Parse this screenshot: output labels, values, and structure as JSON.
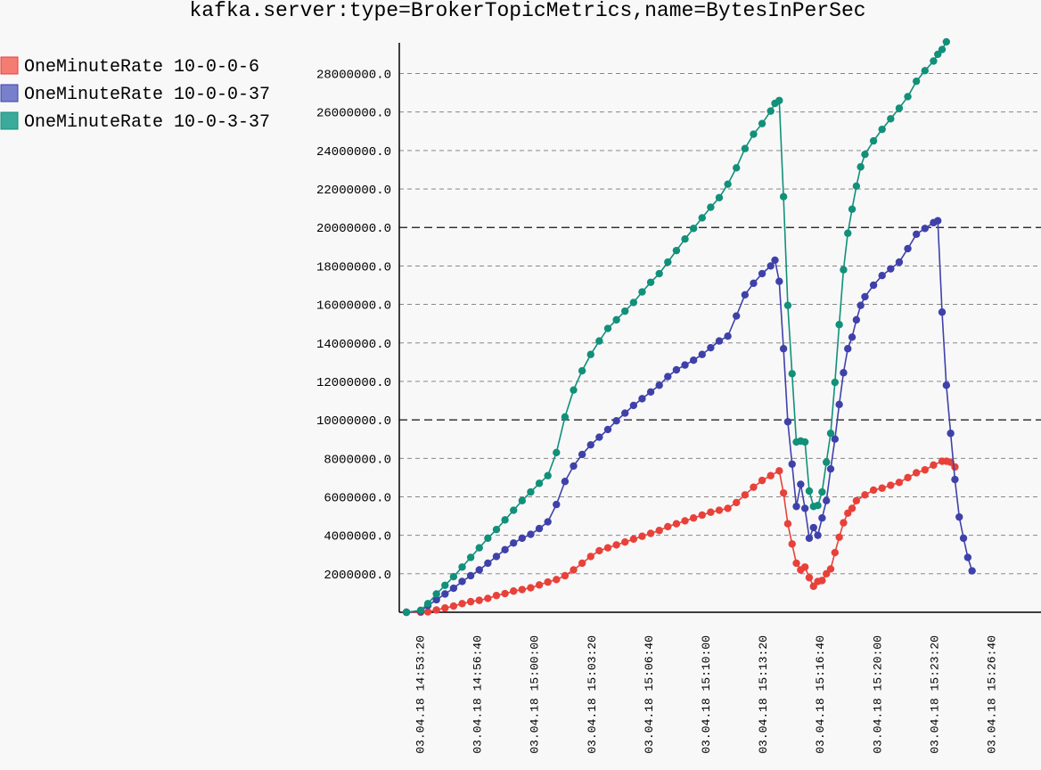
{
  "chart_data": {
    "type": "line",
    "title": "kafka.server:type=BrokerTopicMetrics,name=BytesInPerSec",
    "xlabel": "",
    "ylabel": "",
    "ylim": [
      0,
      29600000
    ],
    "y_ticks": [
      2000000,
      4000000,
      6000000,
      8000000,
      10000000,
      12000000,
      14000000,
      16000000,
      18000000,
      20000000,
      22000000,
      24000000,
      26000000,
      28000000
    ],
    "y_tick_labels": [
      "2000000.0",
      "4000000.0",
      "6000000.0",
      "8000000.0",
      "10000000.0",
      "12000000.0",
      "14000000.0",
      "16000000.0",
      "18000000.0",
      "20000000.0",
      "22000000.0",
      "24000000.0",
      "26000000.0",
      "28000000.0"
    ],
    "major_gridlines": [
      10000000,
      20000000
    ],
    "x_range": [
      "03.04.18 14:52:10",
      "03.04.18 15:29:30"
    ],
    "x_ticks": [
      "03.04.18 14:53:20",
      "03.04.18 14:56:40",
      "03.04.18 15:00:00",
      "03.04.18 15:03:20",
      "03.04.18 15:06:40",
      "03.04.18 15:10:00",
      "03.04.18 15:13:20",
      "03.04.18 15:16:40",
      "03.04.18 15:20:00",
      "03.04.18 15:23:20",
      "03.04.18 15:26:40"
    ],
    "legend_position": "top-left",
    "series": [
      {
        "name": "OneMinuteRate 10-0-0-6",
        "color": "#e8413a",
        "fill": "#f47c73",
        "points": [
          [
            "03.04.18 14:52:35",
            0
          ],
          [
            "03.04.18 14:53:25",
            0
          ],
          [
            "03.04.18 14:53:50",
            20000
          ],
          [
            "03.04.18 14:54:20",
            120000
          ],
          [
            "03.04.18 14:54:50",
            220000
          ],
          [
            "03.04.18 14:55:20",
            320000
          ],
          [
            "03.04.18 14:55:50",
            450000
          ],
          [
            "03.04.18 14:56:20",
            550000
          ],
          [
            "03.04.18 14:56:50",
            620000
          ],
          [
            "03.04.18 14:57:20",
            720000
          ],
          [
            "03.04.18 14:57:50",
            870000
          ],
          [
            "03.04.18 14:58:20",
            970000
          ],
          [
            "03.04.18 14:58:50",
            1100000
          ],
          [
            "03.04.18 14:59:20",
            1180000
          ],
          [
            "03.04.18 14:59:50",
            1270000
          ],
          [
            "03.04.18 15:00:20",
            1420000
          ],
          [
            "03.04.18 15:00:50",
            1570000
          ],
          [
            "03.04.18 15:01:20",
            1700000
          ],
          [
            "03.04.18 15:01:50",
            1900000
          ],
          [
            "03.04.18 15:02:20",
            2200000
          ],
          [
            "03.04.18 15:02:50",
            2550000
          ],
          [
            "03.04.18 15:03:20",
            2900000
          ],
          [
            "03.04.18 15:03:50",
            3200000
          ],
          [
            "03.04.18 15:04:20",
            3350000
          ],
          [
            "03.04.18 15:04:50",
            3500000
          ],
          [
            "03.04.18 15:05:20",
            3650000
          ],
          [
            "03.04.18 15:05:50",
            3800000
          ],
          [
            "03.04.18 15:06:20",
            3950000
          ],
          [
            "03.04.18 15:06:50",
            4100000
          ],
          [
            "03.04.18 15:07:20",
            4250000
          ],
          [
            "03.04.18 15:07:50",
            4450000
          ],
          [
            "03.04.18 15:08:20",
            4600000
          ],
          [
            "03.04.18 15:08:50",
            4750000
          ],
          [
            "03.04.18 15:09:20",
            4900000
          ],
          [
            "03.04.18 15:09:50",
            5050000
          ],
          [
            "03.04.18 15:10:20",
            5200000
          ],
          [
            "03.04.18 15:10:50",
            5300000
          ],
          [
            "03.04.18 15:11:20",
            5400000
          ],
          [
            "03.04.18 15:11:50",
            5700000
          ],
          [
            "03.04.18 15:12:20",
            6100000
          ],
          [
            "03.04.18 15:12:50",
            6500000
          ],
          [
            "03.04.18 15:13:20",
            6850000
          ],
          [
            "03.04.18 15:13:50",
            7100000
          ],
          [
            "03.04.18 15:14:20",
            7350000
          ],
          [
            "03.04.18 15:14:35",
            6200000
          ],
          [
            "03.04.18 15:14:50",
            4600000
          ],
          [
            "03.04.18 15:15:05",
            3550000
          ],
          [
            "03.04.18 15:15:20",
            2550000
          ],
          [
            "03.04.18 15:15:35",
            2200000
          ],
          [
            "03.04.18 15:15:50",
            2350000
          ],
          [
            "03.04.18 15:16:05",
            1800000
          ],
          [
            "03.04.18 15:16:20",
            1350000
          ],
          [
            "03.04.18 15:16:35",
            1600000
          ],
          [
            "03.04.18 15:16:50",
            1650000
          ],
          [
            "03.04.18 15:17:05",
            2000000
          ],
          [
            "03.04.18 15:17:20",
            2250000
          ],
          [
            "03.04.18 15:17:35",
            3100000
          ],
          [
            "03.04.18 15:17:50",
            3900000
          ],
          [
            "03.04.18 15:18:05",
            4650000
          ],
          [
            "03.04.18 15:18:20",
            5150000
          ],
          [
            "03.04.18 15:18:35",
            5400000
          ],
          [
            "03.04.18 15:18:50",
            5800000
          ],
          [
            "03.04.18 15:19:20",
            6100000
          ],
          [
            "03.04.18 15:19:50",
            6350000
          ],
          [
            "03.04.18 15:20:20",
            6450000
          ],
          [
            "03.04.18 15:20:50",
            6600000
          ],
          [
            "03.04.18 15:21:20",
            6750000
          ],
          [
            "03.04.18 15:21:50",
            7000000
          ],
          [
            "03.04.18 15:22:20",
            7250000
          ],
          [
            "03.04.18 15:22:50",
            7400000
          ],
          [
            "03.04.18 15:23:20",
            7650000
          ],
          [
            "03.04.18 15:23:50",
            7850000
          ],
          [
            "03.04.18 15:24:05",
            7850000
          ],
          [
            "03.04.18 15:24:20",
            7800000
          ],
          [
            "03.04.18 15:24:35",
            7550000
          ]
        ]
      },
      {
        "name": "OneMinuteRate 10-0-0-37",
        "color": "#3f41aa",
        "fill": "#7880cc",
        "points": [
          [
            "03.04.18 14:52:35",
            0
          ],
          [
            "03.04.18 14:53:25",
            50000
          ],
          [
            "03.04.18 14:53:50",
            350000
          ],
          [
            "03.04.18 14:54:20",
            650000
          ],
          [
            "03.04.18 14:54:50",
            950000
          ],
          [
            "03.04.18 14:55:20",
            1250000
          ],
          [
            "03.04.18 14:55:50",
            1600000
          ],
          [
            "03.04.18 14:56:20",
            1900000
          ],
          [
            "03.04.18 14:56:50",
            2200000
          ],
          [
            "03.04.18 14:57:20",
            2550000
          ],
          [
            "03.04.18 14:57:50",
            2900000
          ],
          [
            "03.04.18 14:58:20",
            3250000
          ],
          [
            "03.04.18 14:58:50",
            3600000
          ],
          [
            "03.04.18 14:59:20",
            3850000
          ],
          [
            "03.04.18 14:59:50",
            4050000
          ],
          [
            "03.04.18 15:00:20",
            4350000
          ],
          [
            "03.04.18 15:00:50",
            4700000
          ],
          [
            "03.04.18 15:01:20",
            5600000
          ],
          [
            "03.04.18 15:01:50",
            6800000
          ],
          [
            "03.04.18 15:02:20",
            7600000
          ],
          [
            "03.04.18 15:02:50",
            8200000
          ],
          [
            "03.04.18 15:03:20",
            8700000
          ],
          [
            "03.04.18 15:03:50",
            9100000
          ],
          [
            "03.04.18 15:04:20",
            9500000
          ],
          [
            "03.04.18 15:04:50",
            9950000
          ],
          [
            "03.04.18 15:05:20",
            10350000
          ],
          [
            "03.04.18 15:05:50",
            10750000
          ],
          [
            "03.04.18 15:06:20",
            11100000
          ],
          [
            "03.04.18 15:06:50",
            11450000
          ],
          [
            "03.04.18 15:07:20",
            11800000
          ],
          [
            "03.04.18 15:07:50",
            12250000
          ],
          [
            "03.04.18 15:08:20",
            12600000
          ],
          [
            "03.04.18 15:08:50",
            12850000
          ],
          [
            "03.04.18 15:09:20",
            13100000
          ],
          [
            "03.04.18 15:09:50",
            13400000
          ],
          [
            "03.04.18 15:10:20",
            13750000
          ],
          [
            "03.04.18 15:10:50",
            14100000
          ],
          [
            "03.04.18 15:11:20",
            14350000
          ],
          [
            "03.04.18 15:11:50",
            15400000
          ],
          [
            "03.04.18 15:12:20",
            16500000
          ],
          [
            "03.04.18 15:12:50",
            17100000
          ],
          [
            "03.04.18 15:13:20",
            17600000
          ],
          [
            "03.04.18 15:13:50",
            18000000
          ],
          [
            "03.04.18 15:14:05",
            18300000
          ],
          [
            "03.04.18 15:14:20",
            17200000
          ],
          [
            "03.04.18 15:14:35",
            13700000
          ],
          [
            "03.04.18 15:14:50",
            9900000
          ],
          [
            "03.04.18 15:15:05",
            7700000
          ],
          [
            "03.04.18 15:15:20",
            5500000
          ],
          [
            "03.04.18 15:15:35",
            6650000
          ],
          [
            "03.04.18 15:15:50",
            5400000
          ],
          [
            "03.04.18 15:16:05",
            3850000
          ],
          [
            "03.04.18 15:16:20",
            4400000
          ],
          [
            "03.04.18 15:16:35",
            4000000
          ],
          [
            "03.04.18 15:16:50",
            4900000
          ],
          [
            "03.04.18 15:17:05",
            5800000
          ],
          [
            "03.04.18 15:17:20",
            7450000
          ],
          [
            "03.04.18 15:17:35",
            9000000
          ],
          [
            "03.04.18 15:17:50",
            10800000
          ],
          [
            "03.04.18 15:18:05",
            12450000
          ],
          [
            "03.04.18 15:18:20",
            13700000
          ],
          [
            "03.04.18 15:18:35",
            14300000
          ],
          [
            "03.04.18 15:18:50",
            15200000
          ],
          [
            "03.04.18 15:19:05",
            15950000
          ],
          [
            "03.04.18 15:19:20",
            16400000
          ],
          [
            "03.04.18 15:19:50",
            17000000
          ],
          [
            "03.04.18 15:20:20",
            17500000
          ],
          [
            "03.04.18 15:20:50",
            17850000
          ],
          [
            "03.04.18 15:21:20",
            18200000
          ],
          [
            "03.04.18 15:21:50",
            18900000
          ],
          [
            "03.04.18 15:22:20",
            19650000
          ],
          [
            "03.04.18 15:22:50",
            19950000
          ],
          [
            "03.04.18 15:23:20",
            20250000
          ],
          [
            "03.04.18 15:23:35",
            20350000
          ],
          [
            "03.04.18 15:23:50",
            15600000
          ],
          [
            "03.04.18 15:24:05",
            11800000
          ],
          [
            "03.04.18 15:24:20",
            9300000
          ],
          [
            "03.04.18 15:24:35",
            6900000
          ],
          [
            "03.04.18 15:24:50",
            4950000
          ],
          [
            "03.04.18 15:25:05",
            3850000
          ],
          [
            "03.04.18 15:25:20",
            2850000
          ],
          [
            "03.04.18 15:25:35",
            2150000
          ]
        ]
      },
      {
        "name": "OneMinuteRate 10-0-3-37",
        "color": "#11907a",
        "fill": "#3aaa9a",
        "points": [
          [
            "03.04.18 14:52:35",
            0
          ],
          [
            "03.04.18 14:53:25",
            100000
          ],
          [
            "03.04.18 14:53:50",
            450000
          ],
          [
            "03.04.18 14:54:20",
            950000
          ],
          [
            "03.04.18 14:54:50",
            1400000
          ],
          [
            "03.04.18 14:55:20",
            1850000
          ],
          [
            "03.04.18 14:55:50",
            2350000
          ],
          [
            "03.04.18 14:56:20",
            2850000
          ],
          [
            "03.04.18 14:56:50",
            3350000
          ],
          [
            "03.04.18 14:57:20",
            3850000
          ],
          [
            "03.04.18 14:57:50",
            4300000
          ],
          [
            "03.04.18 14:58:20",
            4800000
          ],
          [
            "03.04.18 14:58:50",
            5300000
          ],
          [
            "03.04.18 14:59:20",
            5800000
          ],
          [
            "03.04.18 14:59:50",
            6250000
          ],
          [
            "03.04.18 15:00:20",
            6700000
          ],
          [
            "03.04.18 15:00:50",
            7100000
          ],
          [
            "03.04.18 15:01:20",
            8300000
          ],
          [
            "03.04.18 15:01:50",
            10150000
          ],
          [
            "03.04.18 15:02:20",
            11550000
          ],
          [
            "03.04.18 15:02:50",
            12550000
          ],
          [
            "03.04.18 15:03:20",
            13400000
          ],
          [
            "03.04.18 15:03:50",
            14100000
          ],
          [
            "03.04.18 15:04:20",
            14750000
          ],
          [
            "03.04.18 15:04:50",
            15200000
          ],
          [
            "03.04.18 15:05:20",
            15650000
          ],
          [
            "03.04.18 15:05:50",
            16100000
          ],
          [
            "03.04.18 15:06:20",
            16650000
          ],
          [
            "03.04.18 15:06:50",
            17150000
          ],
          [
            "03.04.18 15:07:20",
            17600000
          ],
          [
            "03.04.18 15:07:50",
            18200000
          ],
          [
            "03.04.18 15:08:20",
            18800000
          ],
          [
            "03.04.18 15:08:50",
            19400000
          ],
          [
            "03.04.18 15:09:20",
            19950000
          ],
          [
            "03.04.18 15:09:50",
            20500000
          ],
          [
            "03.04.18 15:10:20",
            21050000
          ],
          [
            "03.04.18 15:10:50",
            21550000
          ],
          [
            "03.04.18 15:11:20",
            22250000
          ],
          [
            "03.04.18 15:11:50",
            23100000
          ],
          [
            "03.04.18 15:12:20",
            24100000
          ],
          [
            "03.04.18 15:12:50",
            24850000
          ],
          [
            "03.04.18 15:13:20",
            25400000
          ],
          [
            "03.04.18 15:13:50",
            26050000
          ],
          [
            "03.04.18 15:14:05",
            26450000
          ],
          [
            "03.04.18 15:14:20",
            26600000
          ],
          [
            "03.04.18 15:14:35",
            21600000
          ],
          [
            "03.04.18 15:14:50",
            15950000
          ],
          [
            "03.04.18 15:15:05",
            12400000
          ],
          [
            "03.04.18 15:15:20",
            8850000
          ],
          [
            "03.04.18 15:15:35",
            8900000
          ],
          [
            "03.04.18 15:15:50",
            8850000
          ],
          [
            "03.04.18 15:16:05",
            6300000
          ],
          [
            "03.04.18 15:16:20",
            5500000
          ],
          [
            "03.04.18 15:16:35",
            5550000
          ],
          [
            "03.04.18 15:16:50",
            6250000
          ],
          [
            "03.04.18 15:17:05",
            7800000
          ],
          [
            "03.04.18 15:17:20",
            9300000
          ],
          [
            "03.04.18 15:17:35",
            11950000
          ],
          [
            "03.04.18 15:17:50",
            14950000
          ],
          [
            "03.04.18 15:18:05",
            17800000
          ],
          [
            "03.04.18 15:18:20",
            19700000
          ],
          [
            "03.04.18 15:18:35",
            20950000
          ],
          [
            "03.04.18 15:18:50",
            22150000
          ],
          [
            "03.04.18 15:19:05",
            23150000
          ],
          [
            "03.04.18 15:19:20",
            23800000
          ],
          [
            "03.04.18 15:19:50",
            24500000
          ],
          [
            "03.04.18 15:20:20",
            25100000
          ],
          [
            "03.04.18 15:20:50",
            25650000
          ],
          [
            "03.04.18 15:21:20",
            26200000
          ],
          [
            "03.04.18 15:21:50",
            26800000
          ],
          [
            "03.04.18 15:22:20",
            27600000
          ],
          [
            "03.04.18 15:22:50",
            28150000
          ],
          [
            "03.04.18 15:23:20",
            28650000
          ],
          [
            "03.04.18 15:23:35",
            29000000
          ],
          [
            "03.04.18 15:23:50",
            29250000
          ],
          [
            "03.04.18 15:24:05",
            29650000
          ]
        ]
      }
    ]
  }
}
